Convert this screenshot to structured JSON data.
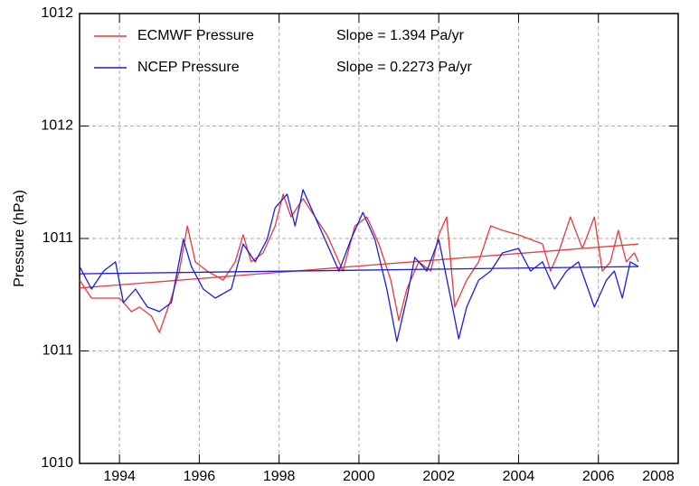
{
  "chart_data": {
    "type": "line",
    "ylabel": "Pressure (hPa)",
    "xlim": [
      1993,
      2008
    ],
    "xticks": [
      1994,
      1996,
      1998,
      2000,
      2002,
      2004,
      2006,
      2008
    ],
    "ylim": [
      1010,
      1012
    ],
    "yticks": [
      1010,
      {
        "value": 1010.5,
        "label": "1011"
      },
      1011,
      {
        "value": 1011.5,
        "label": "1012"
      },
      1012
    ],
    "grid": true,
    "legend": "upper left",
    "series": [
      {
        "name": "ECMWF Pressure",
        "color": "#e8393c",
        "slope_label": "Slope = 1.394 Pa/yr",
        "x": [
          1993.0,
          1993.3,
          1993.8,
          1994.0,
          1994.3,
          1994.5,
          1994.8,
          1995.0,
          1995.3,
          1995.5,
          1995.7,
          1995.9,
          1996.2,
          1996.6,
          1996.9,
          1997.1,
          1997.3,
          1997.6,
          1997.9,
          1998.1,
          1998.3,
          1998.6,
          1998.9,
          1999.2,
          1999.4,
          1999.6,
          1999.9,
          2000.2,
          2000.5,
          2000.8,
          2001.0,
          2001.2,
          2001.5,
          2001.8,
          2002.0,
          2002.2,
          2002.4,
          2002.7,
          2003.0,
          2003.3,
          2003.6,
          2004.0,
          2004.3,
          2004.6,
          2004.8,
          2005.0,
          2005.3,
          2005.6,
          2005.9,
          2006.1,
          2006.3,
          2006.5,
          2006.7,
          2006.9,
          2007.0
        ],
        "values": [
          1010.815,
          1010.735,
          1010.735,
          1010.735,
          1010.675,
          1010.695,
          1010.655,
          1010.582,
          1010.735,
          1010.855,
          1011.056,
          1010.896,
          1010.855,
          1010.815,
          1010.896,
          1011.016,
          1010.896,
          1010.936,
          1011.056,
          1011.197,
          1011.096,
          1011.177,
          1011.096,
          1011.016,
          1010.936,
          1010.855,
          1011.056,
          1011.096,
          1010.976,
          1010.815,
          1010.635,
          1010.775,
          1010.896,
          1010.855,
          1011.016,
          1011.096,
          1010.695,
          1010.815,
          1010.896,
          1011.056,
          1011.036,
          1011.016,
          1010.996,
          1010.976,
          1010.855,
          1010.936,
          1011.096,
          1010.956,
          1011.096,
          1010.855,
          1010.896,
          1011.036,
          1010.896,
          1010.936,
          1010.896
        ],
        "trend": {
          "x": [
            1993,
            2007
          ],
          "values": [
            1010.78,
            1010.975
          ]
        }
      },
      {
        "name": "NCEP Pressure",
        "color": "#1c1ce0",
        "slope_label": "Slope = 0.2273 Pa/yr",
        "x": [
          1993.0,
          1993.3,
          1993.6,
          1993.9,
          1994.1,
          1994.4,
          1994.7,
          1995.0,
          1995.3,
          1995.6,
          1995.8,
          1996.1,
          1996.4,
          1996.8,
          1997.1,
          1997.4,
          1997.7,
          1997.9,
          1998.2,
          1998.4,
          1998.6,
          1998.9,
          1999.2,
          1999.5,
          1999.8,
          2000.1,
          2000.4,
          2000.7,
          2000.95,
          2001.2,
          2001.4,
          2001.7,
          2002.0,
          2002.3,
          2002.5,
          2002.7,
          2003.0,
          2003.3,
          2003.6,
          2004.0,
          2004.3,
          2004.6,
          2004.9,
          2005.2,
          2005.5,
          2005.9,
          2006.2,
          2006.4,
          2006.6,
          2006.8,
          2007.0
        ],
        "values": [
          1010.876,
          1010.775,
          1010.855,
          1010.896,
          1010.715,
          1010.775,
          1010.695,
          1010.675,
          1010.715,
          1010.996,
          1010.876,
          1010.775,
          1010.735,
          1010.775,
          1010.976,
          1010.896,
          1010.996,
          1011.137,
          1011.197,
          1011.056,
          1011.217,
          1011.096,
          1010.976,
          1010.855,
          1010.996,
          1011.116,
          1010.996,
          1010.775,
          1010.542,
          1010.735,
          1010.916,
          1010.855,
          1010.996,
          1010.735,
          1010.554,
          1010.695,
          1010.815,
          1010.855,
          1010.936,
          1010.956,
          1010.855,
          1010.896,
          1010.775,
          1010.855,
          1010.896,
          1010.695,
          1010.815,
          1010.855,
          1010.735,
          1010.896,
          1010.876
        ],
        "trend": {
          "x": [
            1993,
            2007
          ],
          "values": [
            1010.843,
            1010.875
          ]
        }
      }
    ]
  }
}
